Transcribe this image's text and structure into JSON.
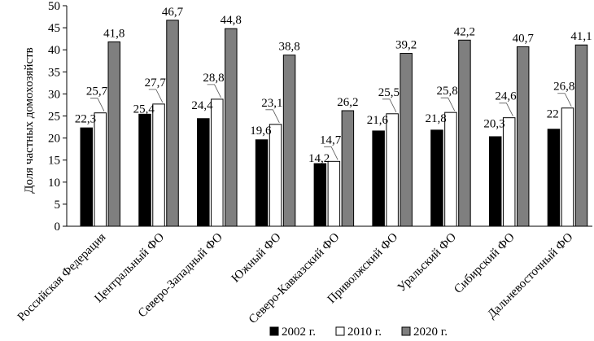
{
  "chart_data": {
    "type": "bar",
    "ylabel": "Доля частных домохозяйств",
    "ylim": [
      0,
      50
    ],
    "yticks": [
      0,
      5,
      10,
      15,
      20,
      25,
      30,
      35,
      40,
      45,
      50
    ],
    "grid": false,
    "legend_position": "bottom",
    "categories": [
      "Российская Федерация",
      "Центральный ФО",
      "Северо-Западный ФО",
      "Южный ФО",
      "Северо-Кавказский ФО",
      "Приволжский ФО",
      "Уральский ФО",
      "Сибирский ФО",
      "Дальневосточный ФО"
    ],
    "series": [
      {
        "name": "2002 г.",
        "color": "#000000",
        "values": [
          22.3,
          25.4,
          24.4,
          19.6,
          14.2,
          21.6,
          21.8,
          20.3,
          22
        ],
        "labels": [
          "22,3",
          "25,4",
          "24,4",
          "19,6",
          "14,2",
          "21,6",
          "21,8",
          "20,3",
          "22"
        ]
      },
      {
        "name": "2010 г.",
        "color": "#ffffff",
        "values": [
          25.7,
          27.7,
          28.8,
          23.1,
          14.7,
          25.5,
          25.8,
          24.6,
          26.8
        ],
        "labels": [
          "25,7",
          "27,7",
          "28,8",
          "23,1",
          "14,7",
          "25,5",
          "25,8",
          "24,6",
          "26,8"
        ]
      },
      {
        "name": "2020 г.",
        "color": "#7f7f7f",
        "values": [
          41.8,
          46.7,
          44.8,
          38.8,
          26.2,
          39.2,
          42.2,
          40.7,
          41.1
        ],
        "labels": [
          "41,8",
          "46,7",
          "44,8",
          "38,8",
          "26,2",
          "39,2",
          "42,2",
          "40,7",
          "41,1"
        ]
      }
    ]
  }
}
